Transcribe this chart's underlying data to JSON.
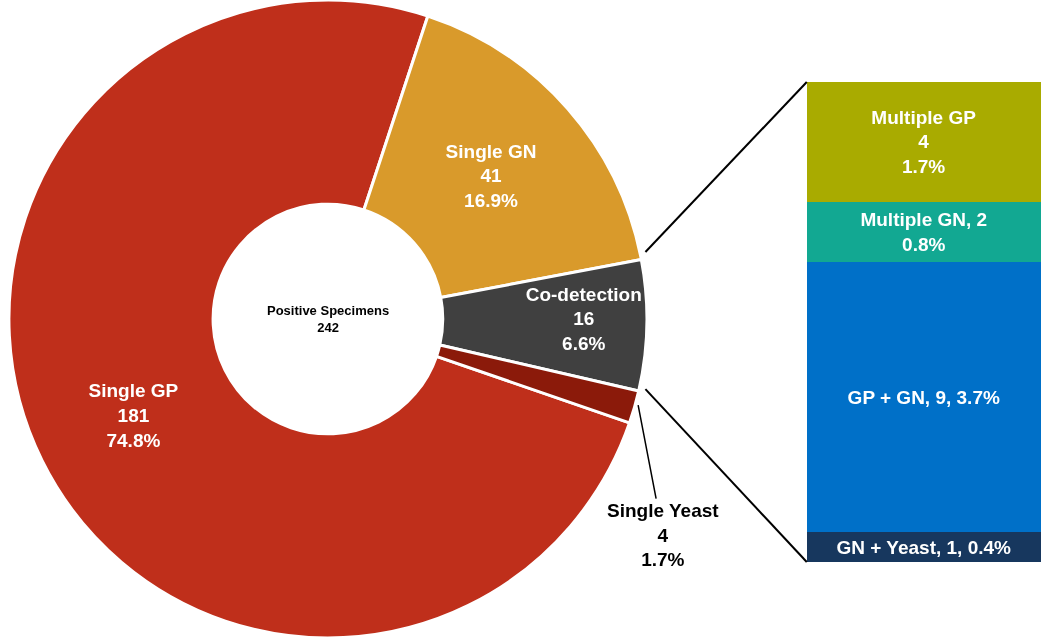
{
  "chart_data": [
    {
      "type": "donut",
      "categories": [
        "Single GP",
        "Single GN",
        "Co-detection",
        "Single Yeast"
      ],
      "values": [
        181,
        41,
        16,
        4
      ],
      "colors": [
        "#bf2f1b",
        "#d99a2b",
        "#404040",
        "#8b1a0a"
      ],
      "value_labels": [
        "181\n74.8%",
        "41\n16.9%",
        "16\n6.6%",
        "4\n1.7%"
      ],
      "annotations": [
        "Positive Specimens\n242"
      ],
      "legend": false
    },
    {
      "type": "bar",
      "stacked": true,
      "categories": [
        null
      ],
      "tick_labels": false,
      "legend": false,
      "series": [
        {
          "color": "#17375e",
          "values": [
            1
          ],
          "value_labels": [
            "GN + Yeast, 1, 0.4%"
          ]
        },
        {
          "color": "#0070c8",
          "values": [
            9
          ],
          "value_labels": [
            "GP + GN, 9, 3.7%"
          ]
        },
        {
          "color": "#12a892",
          "values": [
            2
          ],
          "value_labels": [
            "Multiple GN, 2\n0.8%"
          ]
        },
        {
          "color": "#a9ab00",
          "values": [
            4
          ],
          "value_labels": [
            "Multiple GP\n4\n1.7%"
          ]
        }
      ]
    }
  ]
}
